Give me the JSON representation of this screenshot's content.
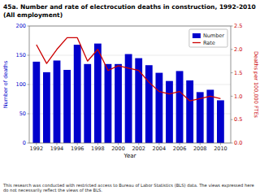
{
  "chart_data": {
    "type": "bar",
    "title": "45a. Number and rate of electrocution deaths in construction, 1992-2010",
    "subtitle": "(All employment)",
    "xlabel": "Year",
    "ylabel": "Number of deaths",
    "y2label": "Deaths per 100,000 FTEs",
    "annotations": [
      "This research was conducted with restricted access to Bureau of Labor Statistics (BLS) data.  The views expressed here do not necessarily reflect the views of the BLS."
    ],
    "x": [
      1992,
      1993,
      1994,
      1995,
      1996,
      1997,
      1998,
      1999,
      2000,
      2001,
      2002,
      2003,
      2004,
      2005,
      2006,
      2007,
      2008,
      2009,
      2010
    ],
    "xlim": [
      1991.3,
      2011
    ],
    "xticks": [
      1992,
      1994,
      1996,
      1998,
      2000,
      2002,
      2004,
      2006,
      2008,
      2010
    ],
    "ylim": [
      0,
      200
    ],
    "yticks": [
      0,
      50,
      100,
      150,
      200
    ],
    "y2lim": [
      0,
      2.5
    ],
    "y2ticks": [
      {
        "value": 0.0,
        "label": "0.0"
      },
      0.5,
      {
        "value": 1.0,
        "label": "1.0"
      },
      1.5,
      {
        "value": 2.0,
        "label": "2.0"
      },
      2.5
    ],
    "grid": true,
    "legend": "upper right",
    "series": [
      {
        "name": "Number",
        "type": "bar",
        "color": "#0000cc",
        "values": [
          139,
          121,
          141,
          125,
          168,
          135,
          170,
          135,
          135,
          152,
          145,
          133,
          120,
          106,
          123,
          107,
          87,
          91,
          73
        ]
      },
      {
        "name": "Rate",
        "type": "line",
        "axis": "y2",
        "color": "#cc0000",
        "values": [
          2.1,
          1.7,
          2.0,
          2.25,
          2.25,
          1.75,
          2.0,
          1.55,
          1.65,
          1.6,
          1.55,
          1.3,
          1.1,
          1.05,
          1.1,
          0.9,
          0.95,
          1.0,
          0.95
        ]
      }
    ]
  }
}
